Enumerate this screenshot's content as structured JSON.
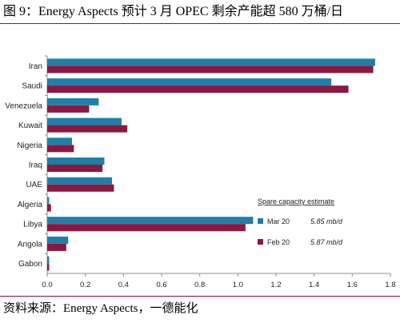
{
  "figure_title": "图 9：Energy Aspects 预计 3 月 OPEC 剩余产能超 580 万桶/日",
  "figure_source": "资料来源：Energy Aspects，一德能化",
  "colors": {
    "mar20": "#1e7fa8",
    "feb20": "#8c1740",
    "axis": "#8c8c8c"
  },
  "chart_data": {
    "type": "bar",
    "orientation": "horizontal",
    "categories": [
      "Iran",
      "Saudi",
      "Venezuela",
      "Kuwait",
      "Nigeria",
      "Iraq",
      "UAE",
      "Algeria",
      "Libya",
      "Angola",
      "Gabon"
    ],
    "series": [
      {
        "name": "Mar 20",
        "estimate": "5.85 mb/d",
        "values": [
          1.72,
          1.49,
          0.27,
          0.39,
          0.13,
          0.3,
          0.34,
          0.01,
          1.08,
          0.11,
          0.01
        ]
      },
      {
        "name": "Feb 20",
        "estimate": "5.87 mb/d",
        "values": [
          1.71,
          1.58,
          0.22,
          0.42,
          0.14,
          0.29,
          0.35,
          0.02,
          1.04,
          0.1,
          0.01
        ]
      }
    ],
    "xlim": [
      0,
      1.8
    ],
    "xticks": [
      "0.0",
      "0.2",
      "0.4",
      "0.6",
      "0.8",
      "1.0",
      "1.2",
      "1.4",
      "1.6",
      "1.8"
    ],
    "legend_title": "Spare capacity estimate",
    "legend_position": "right",
    "grid": false
  }
}
